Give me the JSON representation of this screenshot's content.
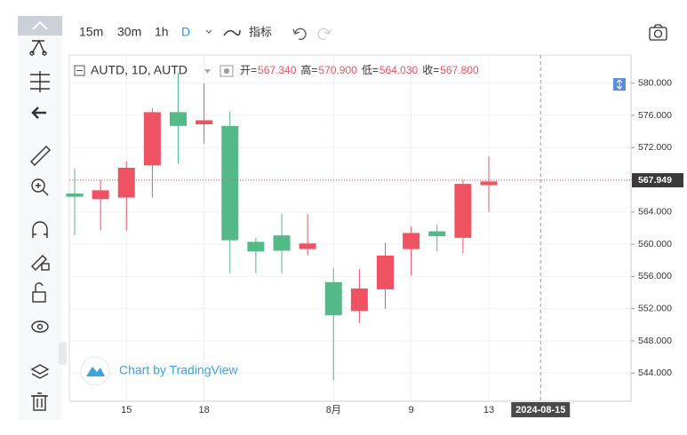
{
  "toolbar": {
    "intervals": [
      "15m",
      "30m",
      "1h",
      "D"
    ],
    "indicators": "指标"
  },
  "chart_data": {
    "type": "candlestick",
    "symbol": "AUTD, 1D, AUTD",
    "ohlc_header": [
      {
        "label": "开=",
        "value": "567.340"
      },
      {
        "label": "高=",
        "value": "570.900"
      },
      {
        "label": "低=",
        "value": "564.030"
      },
      {
        "label": "收=",
        "value": "567.800"
      }
    ],
    "categories": [
      null,
      null,
      "15",
      null,
      null,
      "18",
      null,
      null,
      null,
      null,
      "8月",
      null,
      null,
      "9",
      null,
      null,
      "13"
    ],
    "open": [
      566.3,
      565.6,
      565.8,
      569.8,
      576.4,
      574.9,
      574.7,
      560.3,
      561.1,
      559.4,
      555.3,
      551.7,
      554.4,
      559.4,
      561.6,
      560.8,
      567.34
    ],
    "high": [
      569.4,
      568.0,
      570.3,
      576.9,
      581.3,
      580.0,
      576.5,
      560.8,
      563.8,
      563.7,
      557.1,
      556.9,
      560.2,
      562.2,
      562.4,
      568.0,
      570.9
    ],
    "low": [
      561.1,
      561.7,
      561.7,
      565.8,
      570.0,
      572.5,
      556.4,
      556.4,
      556.4,
      558.6,
      543.1,
      550.2,
      552.0,
      556.1,
      559.1,
      558.9,
      564.03
    ],
    "close": [
      565.9,
      566.7,
      569.5,
      576.4,
      574.7,
      575.4,
      560.5,
      559.1,
      559.2,
      560.1,
      551.2,
      554.5,
      558.6,
      561.4,
      561.0,
      567.5,
      567.8
    ],
    "up_color": "#ef5261",
    "down_color": "#53b987",
    "ylim": [
      540.5,
      583.5
    ],
    "yticks": [
      {
        "value": 544,
        "label": "544.000"
      },
      {
        "value": 548,
        "label": "548.000"
      },
      {
        "value": 552,
        "label": "552.000"
      },
      {
        "value": 556,
        "label": "556.000"
      },
      {
        "value": 560,
        "label": "560.000"
      },
      {
        "value": 564,
        "label": "564.000"
      },
      {
        "value": 568,
        "label": "568.000"
      },
      {
        "value": 572,
        "label": "572.000"
      },
      {
        "value": 576,
        "label": "576.000"
      },
      {
        "value": 580,
        "label": "580.000"
      }
    ],
    "last_price": 567.949,
    "crosshair_label": "2024-08-15",
    "watermark": "Chart by TradingView",
    "grid": true
  }
}
